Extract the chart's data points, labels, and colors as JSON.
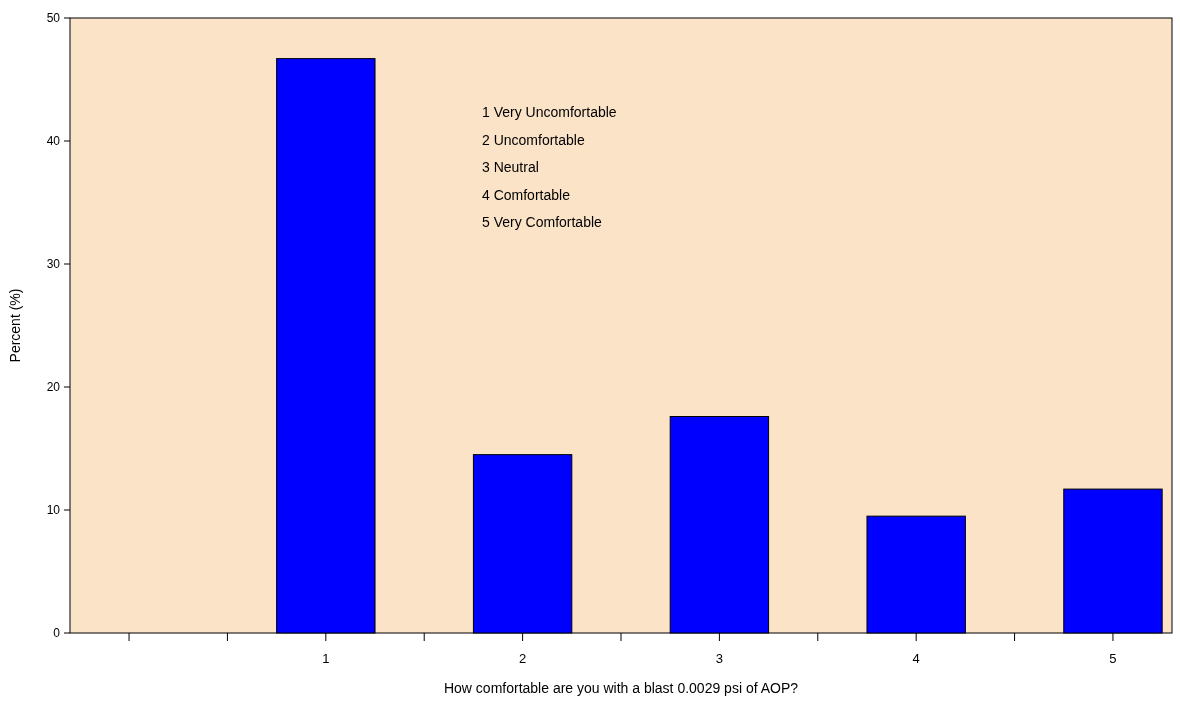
{
  "chart_data": {
    "type": "bar",
    "xlabel": "How comfortable are you with a blast 0.0029 psi of AOP?",
    "ylabel": "Percent (%)",
    "x": [
      1,
      2,
      3,
      4,
      5
    ],
    "values": [
      46.7,
      14.5,
      17.6,
      9.5,
      11.7
    ],
    "color": "#0000ff",
    "xlim": [
      -0.3,
      5.3
    ],
    "xticks": [
      {
        "value": 0,
        "label": null
      },
      {
        "value": 0.5,
        "label": null
      },
      1,
      {
        "value": 1.5,
        "label": null
      },
      2,
      {
        "value": 2.5,
        "label": null
      },
      3,
      {
        "value": 3.5,
        "label": null
      },
      4,
      {
        "value": 4.5,
        "label": null
      },
      5
    ],
    "ylim": [
      0,
      50
    ],
    "yticks": [
      0,
      10,
      20,
      30,
      40,
      50
    ],
    "annotations": [
      "1 Very Uncomfortable",
      "2 Uncomfortable",
      "3 Neutral",
      "4 Comfortable",
      "5 Very Comfortable"
    ],
    "grid": false
  }
}
